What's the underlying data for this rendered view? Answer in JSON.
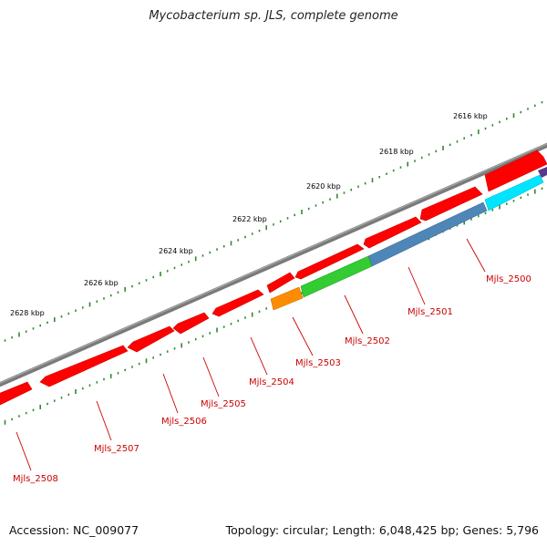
{
  "title": "Mycobacterium sp. JLS, complete genome",
  "footer": {
    "accession": "Accession: NC_009077",
    "summary": "Topology: circular; Length: 6,048,425 bp; Genes: 5,796"
  },
  "kbp_labels": [
    "2616 kbp",
    "2618 kbp",
    "2620 kbp",
    "2622 kbp",
    "2624 kbp",
    "2626 kbp",
    "2628 kbp"
  ],
  "gene_labels": [
    "Mjls_2500",
    "Mjls_2501",
    "Mjls_2502",
    "Mjls_2503",
    "Mjls_2504",
    "Mjls_2505",
    "Mjls_2506",
    "Mjls_2507",
    "Mjls_2508"
  ],
  "colors": {
    "backbone": "#7a7a7a",
    "gene_default": "#ff0000",
    "gene_2500": "#00e5ff",
    "gene_2501": "#4f86b8",
    "gene_2502": "#33cc33",
    "gene_2503": "#ff8c00",
    "tick": "#2e8b2e",
    "label": "#cc0000"
  }
}
